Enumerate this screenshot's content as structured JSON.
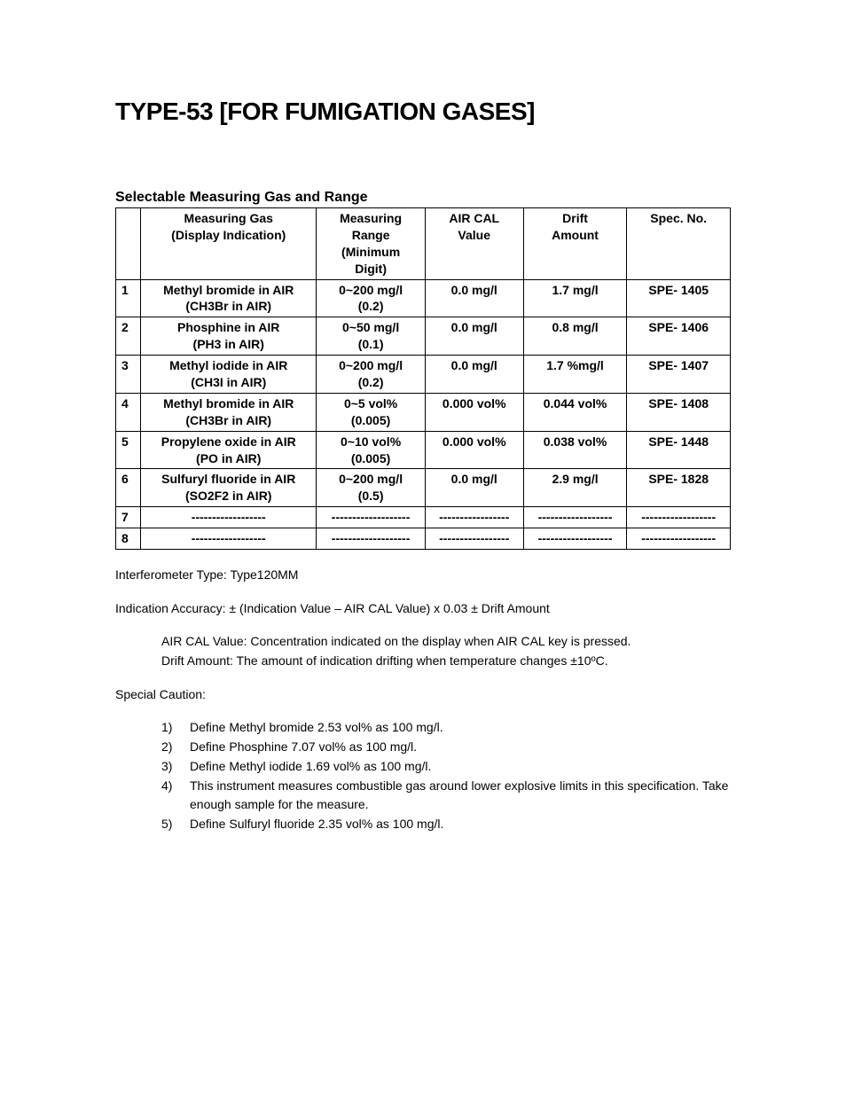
{
  "title": "TYPE-53 [FOR FUMIGATION GASES]",
  "section_heading": "Selectable Measuring Gas and Range",
  "table": {
    "columns": [
      "",
      "Measuring Gas (Display Indication)",
      "Measuring Range (Minimum Digit)",
      "AIR CAL Value",
      "Drift Amount",
      "Spec. No."
    ],
    "header_lines": {
      "c0": "",
      "c1a": "Measuring Gas",
      "c1b": "(Display Indication)",
      "c2a": "Measuring",
      "c2b": "Range",
      "c2c": "(Minimum",
      "c2d": "Digit)",
      "c3a": "AIR CAL",
      "c3b": "Value",
      "c4a": "Drift",
      "c4b": "Amount",
      "c5": "Spec. No."
    },
    "rows": [
      {
        "n": "1",
        "gas_main": "Methyl bromide in AIR",
        "gas_sub": "(CH3Br in AIR)",
        "range_main": "0~200 mg/l",
        "range_sub": "(0.2)",
        "aircal": "0.0 mg/l",
        "drift": "1.7 mg/l",
        "spec": "SPE- 1405"
      },
      {
        "n": "2",
        "gas_main": "Phosphine in AIR",
        "gas_sub": "(PH3 in AIR)",
        "range_main": "0~50 mg/l",
        "range_sub": "(0.1)",
        "aircal": "0.0 mg/l",
        "drift": "0.8 mg/l",
        "spec": "SPE- 1406"
      },
      {
        "n": "3",
        "gas_main": "Methyl iodide in AIR",
        "gas_sub": "(CH3I in AIR)",
        "range_main": "0~200 mg/l",
        "range_sub": "(0.2)",
        "aircal": "0.0 mg/l",
        "drift": "1.7 %mg/l",
        "spec": "SPE- 1407"
      },
      {
        "n": "4",
        "gas_main": "Methyl bromide in AIR",
        "gas_sub": "(CH3Br in AIR)",
        "range_main": "0~5 vol%",
        "range_sub": "(0.005)",
        "aircal": "0.000 vol%",
        "drift": "0.044 vol%",
        "spec": "SPE- 1408"
      },
      {
        "n": "5",
        "gas_main": "Propylene oxide in AIR",
        "gas_sub": "(PO in AIR)",
        "range_main": "0~10 vol%",
        "range_sub": "(0.005)",
        "aircal": "0.000 vol%",
        "drift": "0.038 vol%",
        "spec": "SPE- 1448"
      },
      {
        "n": "6",
        "gas_main": "Sulfuryl fluoride in AIR",
        "gas_sub": "(SO2F2 in AIR)",
        "range_main": "0~200 mg/l",
        "range_sub": "(0.5)",
        "aircal": "0.0 mg/l",
        "drift": "2.9 mg/l",
        "spec": "SPE- 1828"
      },
      {
        "n": "7",
        "gas_main": "------------------",
        "gas_sub": "",
        "range_main": "-------------------",
        "range_sub": "",
        "aircal": "-----------------",
        "drift": "------------------",
        "spec": "------------------"
      },
      {
        "n": "8",
        "gas_main": "------------------",
        "gas_sub": "",
        "range_main": "-------------------",
        "range_sub": "",
        "aircal": "-----------------",
        "drift": "------------------",
        "spec": "------------------"
      }
    ]
  },
  "notes": {
    "interferometer": "Interferometer Type: Type120MM",
    "accuracy": "Indication Accuracy: ± (Indication Value – AIR CAL Value) x 0.03 ± Drift Amount",
    "def_aircal": "AIR CAL Value: Concentration indicated on the display when AIR CAL key is pressed.",
    "def_drift": "Drift Amount: The amount of indication drifting when temperature changes ±10ºC.",
    "caution_head": "Special Caution:",
    "cautions": [
      {
        "num": "1)",
        "text": "Define Methyl bromide 2.53 vol% as 100 mg/l."
      },
      {
        "num": "2)",
        "text": "Define Phosphine 7.07 vol% as 100 mg/l."
      },
      {
        "num": "3)",
        "text": "Define Methyl iodide 1.69 vol% as 100 mg/l."
      },
      {
        "num": "4)",
        "text": "This instrument measures combustible gas around lower explosive limits in this specification. Take enough sample for the measure."
      },
      {
        "num": "5)",
        "text": "Define Sulfuryl fluoride 2.35 vol% as 100 mg/l."
      }
    ]
  },
  "style": {
    "background": "#ffffff",
    "text_color": "#000000",
    "border_color": "#000000",
    "title_fontsize": 28,
    "heading_fontsize": 16,
    "body_fontsize": 14
  }
}
